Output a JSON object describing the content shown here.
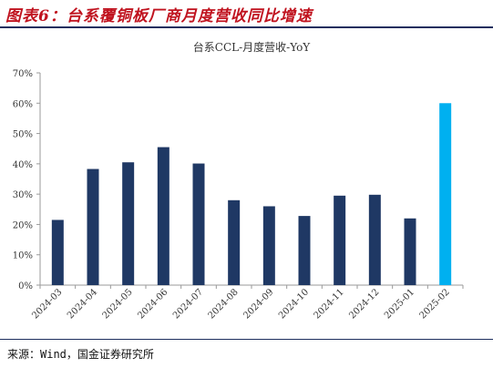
{
  "figure": {
    "caption": "图表6：台系覆铜板厂商月度营收同比增速",
    "source": "来源：Wind，国金证券研究所"
  },
  "chart_data": {
    "type": "bar",
    "title": "台系CCL-月度营收-YoY",
    "xlabel": "",
    "ylabel": "",
    "categories": [
      "2024-03",
      "2024-04",
      "2024-05",
      "2024-06",
      "2024-07",
      "2024-08",
      "2024-09",
      "2024-10",
      "2024-11",
      "2024-12",
      "2025-01",
      "2025-02"
    ],
    "values": [
      21.5,
      38.3,
      40.5,
      45.5,
      40.1,
      28.0,
      26.0,
      22.8,
      29.5,
      29.8,
      22.0,
      60.0
    ],
    "ylim": [
      0,
      70
    ],
    "yticks": [
      "0%",
      "10%",
      "20%",
      "30%",
      "40%",
      "50%",
      "60%",
      "70%"
    ],
    "ytick_values": [
      0,
      10,
      20,
      30,
      40,
      50,
      60,
      70
    ],
    "grid": false,
    "legend": "none",
    "colors": {
      "default_bar": "#1f3864",
      "highlight_bar": "#00b0f0",
      "axis": "#9a9a9a",
      "text": "#333333"
    },
    "highlight_index": 11
  }
}
